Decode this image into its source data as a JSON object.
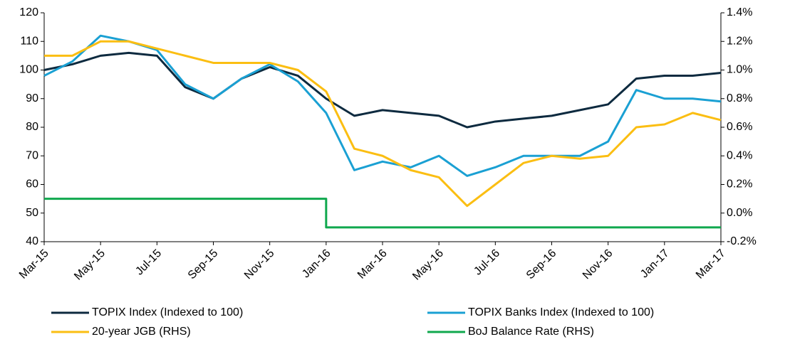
{
  "chart_data": {
    "type": "line",
    "x": [
      "Mar-15",
      "Apr-15",
      "May-15",
      "Jun-15",
      "Jul-15",
      "Aug-15",
      "Sep-15",
      "Oct-15",
      "Nov-15",
      "Dec-15",
      "Jan-16",
      "Feb-16",
      "Mar-16",
      "Apr-16",
      "May-16",
      "Jun-16",
      "Jul-16",
      "Aug-16",
      "Sep-16",
      "Oct-16",
      "Nov-16",
      "Dec-16",
      "Jan-17",
      "Feb-17",
      "Mar-17"
    ],
    "series": [
      {
        "name": "TOPIX Index (Indexed to 100)",
        "color": "#0d2a3f",
        "values": [
          100,
          102,
          105,
          106,
          105,
          94,
          90,
          97,
          101,
          98,
          90,
          84,
          86,
          85,
          84,
          80,
          82,
          83,
          84,
          86,
          88,
          97,
          98,
          98,
          99
        ]
      },
      {
        "name": "TOPIX Banks Index (Indexed to 100)",
        "color": "#1aa0d3",
        "values": [
          98,
          103,
          112,
          110,
          107,
          95,
          90,
          97,
          102,
          96,
          85,
          65,
          68,
          66,
          70,
          63,
          66,
          70,
          70,
          70,
          75,
          93,
          90,
          90,
          89
        ]
      },
      {
        "name": "20-year JGB (RHS)",
        "color": "#fbbe12",
        "axis": "y2",
        "values": [
          1.1,
          1.1,
          1.2,
          1.2,
          1.15,
          1.1,
          1.05,
          1.05,
          1.05,
          1.0,
          0.85,
          0.45,
          0.4,
          0.3,
          0.25,
          0.05,
          0.2,
          0.35,
          0.4,
          0.38,
          0.4,
          0.6,
          0.62,
          0.7,
          0.65
        ]
      },
      {
        "name": "BoJ Balance Rate (RHS)",
        "color": "#10a84e",
        "axis": "y2",
        "values": [
          0.1,
          0.1,
          0.1,
          0.1,
          0.1,
          0.1,
          0.1,
          0.1,
          0.1,
          0.1,
          0.1,
          -0.1,
          -0.1,
          -0.1,
          -0.1,
          -0.1,
          -0.1,
          -0.1,
          -0.1,
          -0.1,
          -0.1,
          -0.1,
          -0.1,
          -0.1,
          -0.1
        ]
      }
    ],
    "ylim": [
      40,
      120
    ],
    "yticks": [
      40,
      50,
      60,
      70,
      80,
      90,
      100,
      110,
      120
    ],
    "y2lim": [
      -0.2,
      1.4
    ],
    "y2ticks": [
      {
        "value": -0.2,
        "label": "-0.2%"
      },
      {
        "value": 0,
        "label": "0.0%"
      },
      {
        "value": 0.2,
        "label": "0.2%"
      },
      {
        "value": 0.4,
        "label": "0.4%"
      },
      {
        "value": 0.6,
        "label": "0.6%"
      },
      {
        "value": 0.8,
        "label": "0.8%"
      },
      {
        "value": 1.0,
        "label": "1.0%"
      },
      {
        "value": 1.2,
        "label": "1.2%"
      },
      {
        "value": 1.4,
        "label": "1.4%"
      }
    ]
  }
}
